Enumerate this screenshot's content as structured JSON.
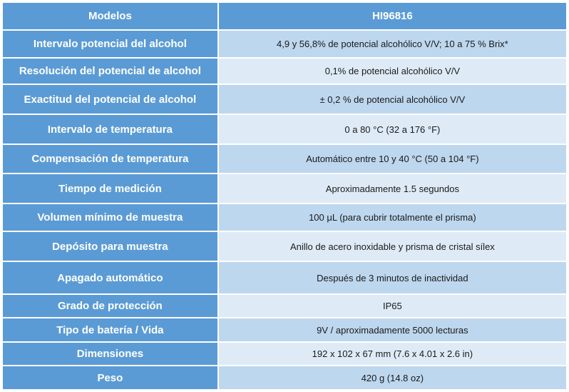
{
  "table": {
    "header": {
      "label": "Modelos",
      "value": "HI96816"
    },
    "rows": [
      {
        "label": "Intervalo potencial del alcohol",
        "value": "4,9 y 56,8% de potencial alcohólico V/V; 10 a 75 % Brix*"
      },
      {
        "label": "Resolución del potencial de alcohol",
        "value": "0,1% de potencial alcohólico V/V"
      },
      {
        "label": "Exactitud del potencial de alcohol",
        "value": "± 0,2 % de potencial alcohólico V/V"
      },
      {
        "label": "Intervalo de temperatura",
        "value": "0 a 80 °C (32 a 176 °F)"
      },
      {
        "label": "Compensación de temperatura",
        "value": "Automático entre 10 y 40 °C (50 a 104 °F)"
      },
      {
        "label": "Tiempo de medición",
        "value": "Aproximadamente 1.5 segundos"
      },
      {
        "label": "Volumen mínimo de muestra",
        "value": "100 μL (para cubrir totalmente el prisma)"
      },
      {
        "label": "Depósito para muestra",
        "value": "Anillo de acero inoxidable y prisma de cristal sílex"
      },
      {
        "label": "Apagado automático",
        "value": "Después de 3 minutos de inactividad"
      },
      {
        "label": "Grado de protección",
        "value": "IP65"
      },
      {
        "label": "Tipo de batería / Vida",
        "value": "9V / aproximadamente 5000 lecturas"
      },
      {
        "label": "Dimensiones",
        "value": "192 x 102 x 67 mm (7.6 x 4.01 x 2.6 in)"
      },
      {
        "label": "Peso",
        "value": "420 g (14.8 oz)"
      }
    ]
  },
  "colors": {
    "header_blue": "#5b9bd5",
    "value_band_dark": "#bdd7ee",
    "value_band_light": "#deebf7"
  }
}
